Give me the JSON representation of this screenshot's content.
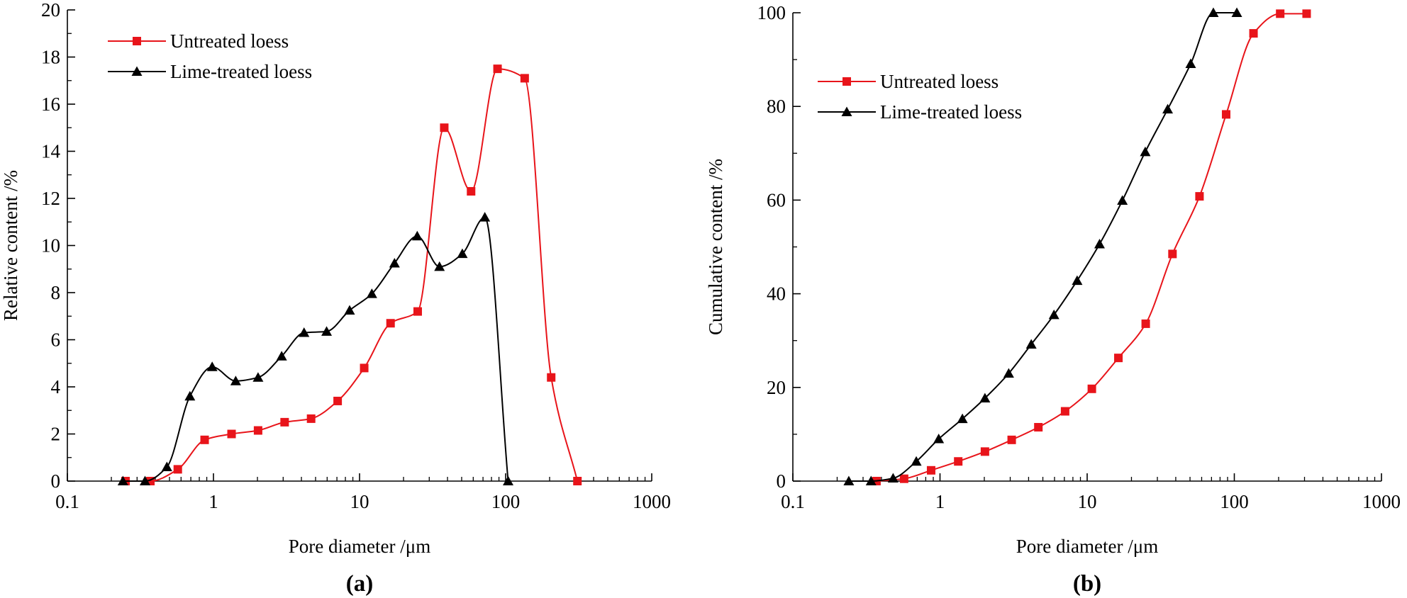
{
  "colors": {
    "untreated": "#e8141a",
    "lime": "#000000",
    "axis": "#000000"
  },
  "chart_data": [
    {
      "panel_label": "(a)",
      "type": "line",
      "xscale": "log",
      "xlim": [
        0.1,
        1000
      ],
      "ylim": [
        0,
        20
      ],
      "xlabel": "Pore diameter /μm",
      "ylabel": "Relative content /%",
      "x_ticks": [
        0.1,
        1,
        10,
        100,
        1000
      ],
      "x_tick_labels": [
        "0.1",
        "1",
        "10",
        "100",
        "1000"
      ],
      "y_ticks": [
        0,
        2,
        4,
        6,
        8,
        10,
        12,
        14,
        16,
        18,
        20
      ],
      "y_tick_labels": [
        "0",
        "2",
        "4",
        "6",
        "8",
        "10",
        "12",
        "14",
        "16",
        "18",
        "20"
      ],
      "legend_position": "top-left",
      "series": [
        {
          "name": "Untreated loess",
          "color_key": "untreated",
          "marker": "square",
          "points": [
            [
              0.25,
              0
            ],
            [
              0.37,
              0
            ],
            [
              0.57,
              0.5
            ],
            [
              0.87,
              1.75
            ],
            [
              1.33,
              2.0
            ],
            [
              2.02,
              2.15
            ],
            [
              3.07,
              2.5
            ],
            [
              4.66,
              2.65
            ],
            [
              7.08,
              3.4
            ],
            [
              10.76,
              4.8
            ],
            [
              16.3,
              6.7
            ],
            [
              25.0,
              7.2
            ],
            [
              38.0,
              15.0
            ],
            [
              58.0,
              12.3
            ],
            [
              88.0,
              17.5
            ],
            [
              135.0,
              17.1
            ],
            [
              205.0,
              4.4
            ],
            [
              310.0,
              0
            ]
          ]
        },
        {
          "name": "Lime-treated loess",
          "color_key": "lime",
          "marker": "triangle",
          "points": [
            [
              0.24,
              0
            ],
            [
              0.34,
              0
            ],
            [
              0.48,
              0.6
            ],
            [
              0.69,
              3.6
            ],
            [
              0.98,
              4.85
            ],
            [
              1.42,
              4.25
            ],
            [
              2.02,
              4.4
            ],
            [
              2.93,
              5.3
            ],
            [
              4.17,
              6.3
            ],
            [
              5.95,
              6.35
            ],
            [
              8.55,
              7.25
            ],
            [
              12.14,
              7.95
            ],
            [
              17.35,
              9.25
            ],
            [
              24.82,
              10.4
            ],
            [
              35.25,
              9.1
            ],
            [
              50.53,
              9.65
            ],
            [
              72.04,
              11.2
            ],
            [
              104.0,
              0
            ]
          ]
        }
      ]
    },
    {
      "panel_label": "(b)",
      "type": "line",
      "xscale": "log",
      "xlim": [
        0.1,
        1000
      ],
      "ylim": [
        0,
        100
      ],
      "xlabel": "Pore diameter /μm",
      "ylabel": "Cumulative content /%",
      "x_ticks": [
        0.1,
        1,
        10,
        100,
        1000
      ],
      "x_tick_labels": [
        "0.1",
        "1",
        "10",
        "100",
        "1000"
      ],
      "y_ticks": [
        0,
        20,
        40,
        60,
        80,
        100
      ],
      "y_tick_labels": [
        "0",
        "20",
        "40",
        "60",
        "80",
        "100"
      ],
      "legend_position": "upper-left",
      "series": [
        {
          "name": "Untreated loess",
          "color_key": "untreated",
          "marker": "square",
          "points": [
            [
              0.37,
              0
            ],
            [
              0.57,
              0.5
            ],
            [
              0.87,
              2.3
            ],
            [
              1.33,
              4.2
            ],
            [
              2.02,
              6.3
            ],
            [
              3.07,
              8.8
            ],
            [
              4.66,
              11.5
            ],
            [
              7.08,
              14.9
            ],
            [
              10.76,
              19.7
            ],
            [
              16.3,
              26.3
            ],
            [
              25.0,
              33.6
            ],
            [
              38.0,
              48.5
            ],
            [
              58.0,
              60.8
            ],
            [
              88.0,
              78.3
            ],
            [
              135.0,
              95.6
            ],
            [
              205.0,
              99.8
            ],
            [
              310.0,
              99.8
            ]
          ]
        },
        {
          "name": "Lime-treated loess",
          "color_key": "lime",
          "marker": "triangle",
          "points": [
            [
              0.24,
              0
            ],
            [
              0.34,
              0
            ],
            [
              0.48,
              0.6
            ],
            [
              0.69,
              4.2
            ],
            [
              0.98,
              9.0
            ],
            [
              1.42,
              13.3
            ],
            [
              2.02,
              17.7
            ],
            [
              2.93,
              23.0
            ],
            [
              4.17,
              29.2
            ],
            [
              5.95,
              35.5
            ],
            [
              8.55,
              42.8
            ],
            [
              12.14,
              50.6
            ],
            [
              17.35,
              59.9
            ],
            [
              24.82,
              70.3
            ],
            [
              35.25,
              79.4
            ],
            [
              50.53,
              89.1
            ],
            [
              72.04,
              100
            ],
            [
              104.0,
              100
            ]
          ]
        }
      ]
    }
  ]
}
